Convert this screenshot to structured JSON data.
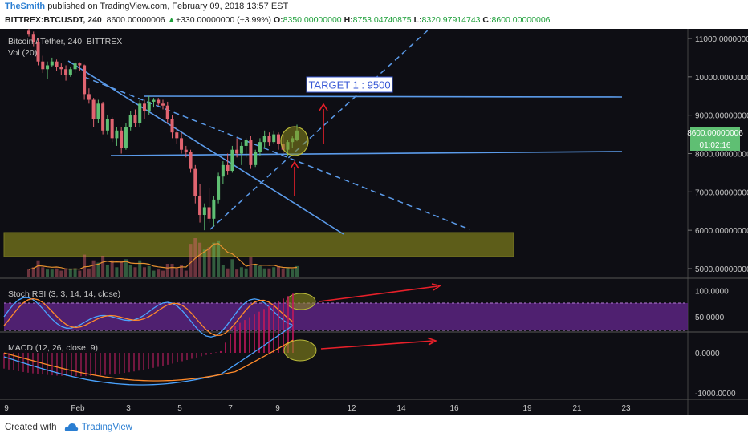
{
  "header": {
    "author": "TheSmith",
    "published_text": "published on TradingView.com, February 09, 2018 13:57 EST",
    "symbol": "BITTREX:BTCUSDT, 240",
    "last": "8600.00000006",
    "change_arrow": "▲",
    "change": "+330.00000000 (+3.99%)",
    "o_label": "O:",
    "o_value": "8350.00000000",
    "h_label": "H:",
    "h_value": "8753.04740875",
    "l_label": "L:",
    "l_value": "8320.97914743",
    "c_label": "C:",
    "c_value": "8600.00000006"
  },
  "main_pane": {
    "title": "Bitcoin / Tether, 240, BITTREX",
    "vol_label": "Vol (20)",
    "annotation": "TARGET 1 : 9500",
    "price_tag": "8600.00000006",
    "countdown_tag": "01:02:16"
  },
  "rsi_pane": {
    "title": "Stoch RSI (3, 3, 14, 14, close)"
  },
  "macd_pane": {
    "title": "MACD (12, 26, close, 9)"
  },
  "footer": {
    "created_with": "Created with",
    "brand": "TradingView"
  },
  "colors": {
    "background": "#0e0e14",
    "up": "#5fbf73",
    "down": "#e06470",
    "trendline": "#5b9bea",
    "annotation_arrow": "#e8202a",
    "highlight_zone": "#6b6b1a",
    "rsi_band": "#5a2380"
  },
  "chart_data": [
    {
      "type": "candlestick",
      "title": "Bitcoin / Tether, 240, BITTREX",
      "y_axis_ticks": [
        5000,
        6000,
        7000,
        8000,
        9000,
        10000,
        11000
      ],
      "y_tick_labels": [
        "5000.00000000",
        "6000.00000000",
        "7000.00000000",
        "8000.00000000",
        "9000.00000000",
        "10000.00000000",
        "11000.00000000"
      ],
      "ylim": [
        4750,
        11200
      ],
      "x_tick_labels": [
        "9",
        "Feb",
        "3",
        "5",
        "7",
        "9",
        "12",
        "14",
        "16",
        "19",
        "21",
        "23"
      ],
      "levels": {
        "horizontal_resistance": 9500,
        "horizontal_support": 8050,
        "target": 9500
      },
      "candles": [
        [
          11200,
          11250,
          11050,
          11100
        ],
        [
          11100,
          11180,
          10800,
          10900
        ],
        [
          10900,
          11000,
          10300,
          10400
        ],
        [
          10400,
          10550,
          10100,
          10200
        ],
        [
          10200,
          10400,
          9950,
          10300
        ],
        [
          10300,
          10500,
          10250,
          10400
        ],
        [
          10400,
          10450,
          10150,
          10250
        ],
        [
          10250,
          10350,
          10050,
          10200
        ],
        [
          10200,
          10300,
          9900,
          10050
        ],
        [
          10050,
          10250,
          10000,
          10200
        ],
        [
          10200,
          10400,
          10100,
          10350
        ],
        [
          10350,
          10380,
          10150,
          10300
        ],
        [
          10300,
          10320,
          9400,
          9550
        ],
        [
          9550,
          9700,
          9300,
          9400
        ],
        [
          9400,
          9450,
          8700,
          8900
        ],
        [
          8900,
          9400,
          8800,
          9300
        ],
        [
          9300,
          9350,
          8500,
          8600
        ],
        [
          8600,
          9000,
          8500,
          8900
        ],
        [
          8900,
          8950,
          8300,
          8400
        ],
        [
          8400,
          8700,
          8200,
          8600
        ],
        [
          8600,
          8700,
          8000,
          8150
        ],
        [
          8150,
          8800,
          8100,
          8700
        ],
        [
          8700,
          9100,
          8600,
          9000
        ],
        [
          9000,
          9150,
          8700,
          8800
        ],
        [
          8800,
          9400,
          8700,
          9300
        ],
        [
          9300,
          9400,
          8900,
          9100
        ],
        [
          9100,
          9500,
          9000,
          9350
        ],
        [
          9350,
          9450,
          9200,
          9400
        ],
        [
          9400,
          9450,
          9250,
          9300
        ],
        [
          9300,
          9400,
          9150,
          9250
        ],
        [
          9250,
          9350,
          8800,
          8900
        ],
        [
          8900,
          9000,
          8400,
          8550
        ],
        [
          8550,
          8700,
          8250,
          8400
        ],
        [
          8400,
          8550,
          8000,
          8100
        ],
        [
          8100,
          8200,
          7900,
          8050
        ],
        [
          8050,
          8100,
          7500,
          7600
        ],
        [
          7600,
          7700,
          6700,
          6900
        ],
        [
          6900,
          7200,
          6200,
          6400
        ],
        [
          6400,
          6700,
          6000,
          6600
        ],
        [
          6600,
          7100,
          6200,
          6300
        ],
        [
          6300,
          6900,
          6100,
          6800
        ],
        [
          6800,
          7500,
          6700,
          7400
        ],
        [
          7400,
          7800,
          7200,
          7700
        ],
        [
          7700,
          8000,
          7450,
          7550
        ],
        [
          7550,
          8200,
          7500,
          8100
        ],
        [
          8100,
          8400,
          7900,
          8000
        ],
        [
          8000,
          8300,
          7700,
          8200
        ],
        [
          8200,
          8400,
          7900,
          8350
        ],
        [
          8350,
          8450,
          7600,
          7700
        ],
        [
          7700,
          8100,
          7650,
          8050
        ],
        [
          8050,
          8400,
          7950,
          8300
        ],
        [
          8300,
          8600,
          8150,
          8450
        ],
        [
          8450,
          8550,
          8200,
          8300
        ],
        [
          8300,
          8600,
          8250,
          8500
        ],
        [
          8500,
          8550,
          8100,
          8250
        ],
        [
          8250,
          8500,
          8000,
          8100
        ],
        [
          8100,
          8350,
          7950,
          8300
        ],
        [
          8300,
          8450,
          8150,
          8400
        ],
        [
          8350,
          8753,
          8321,
          8600
        ]
      ],
      "volume_series_present": true
    },
    {
      "type": "line",
      "title": "Stoch RSI (3, 3, 14, 14, close)",
      "y_axis_ticks": [
        50,
        100
      ],
      "y_tick_labels": [
        "50.0000",
        "100.0000"
      ],
      "band": [
        20,
        80
      ],
      "series_count": 2
    },
    {
      "type": "line",
      "title": "MACD (12, 26, close, 9)",
      "y_axis_ticks": [
        -1000,
        0
      ],
      "y_tick_labels": [
        "-1000.0000",
        "0.0000"
      ],
      "series_count": 2,
      "histogram": true
    }
  ]
}
